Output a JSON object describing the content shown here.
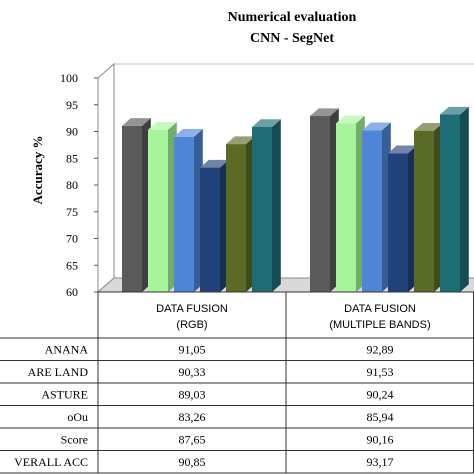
{
  "chart_data": {
    "type": "bar",
    "title": "Numerical evaluation",
    "subtitle": "CNN - SegNet",
    "ylabel": "Accuracy %",
    "ylim": [
      60,
      100
    ],
    "yticks": [
      60,
      65,
      70,
      75,
      80,
      85,
      90,
      95,
      100
    ],
    "categories": [
      [
        "DATA FUSION",
        "(RGB)"
      ],
      [
        "DATA FUSION",
        "(MULTIPLE BANDS)"
      ]
    ],
    "series": [
      {
        "label": "ANANA",
        "values": [
          91.05,
          92.89
        ],
        "display": [
          "91,05",
          "92,89"
        ],
        "color": "#5a5a5a"
      },
      {
        "label": "ARE LAND",
        "values": [
          90.33,
          91.53
        ],
        "display": [
          "90,33",
          "91,53"
        ],
        "color": "#a6f59a"
      },
      {
        "label": "ASTURE",
        "values": [
          89.03,
          90.24
        ],
        "display": [
          "89,03",
          "90,24"
        ],
        "color": "#4f86d8"
      },
      {
        "label": "oOu",
        "values": [
          83.26,
          85.94
        ],
        "display": [
          "83,26",
          "85,94"
        ],
        "color": "#22427a"
      },
      {
        "label": "Score",
        "values": [
          87.65,
          90.16
        ],
        "display": [
          "87,65",
          "90,16"
        ],
        "color": "#5a6b26"
      },
      {
        "label": "VERALL ACC",
        "values": [
          90.85,
          93.17
        ],
        "display": [
          "90,85",
          "93,17"
        ],
        "color": "#1e6d76"
      }
    ],
    "grid": false,
    "legend": "table-below"
  }
}
